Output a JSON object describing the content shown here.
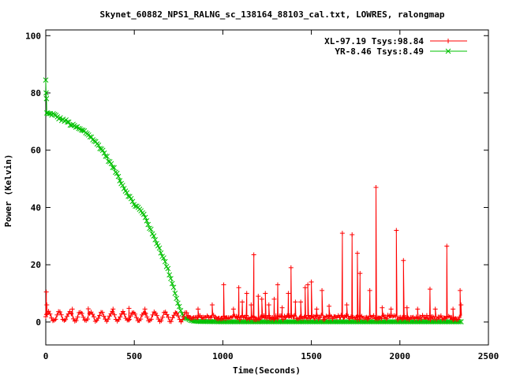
{
  "chart_data": {
    "type": "line",
    "title": "Skynet_60882_NPS1_RALNG_sc_138164_88103_cal.txt, LOWRES, ralongmap",
    "xlabel": "Time(Seconds)",
    "ylabel": "Power (Kelvin)",
    "xlim": [
      0,
      2500
    ],
    "ylim": [
      -8,
      102
    ],
    "xticks": [
      0,
      500,
      1000,
      1500,
      2000,
      2500
    ],
    "yticks": [
      0,
      20,
      40,
      60,
      80,
      100
    ],
    "grid": false,
    "legend_position": "top-right",
    "series": [
      {
        "name": "XL-97.19 Tsys:98.84",
        "color": "#ff0000",
        "marker": "plus",
        "baseline": {
          "x_start": 0,
          "x_end": 2350,
          "step": 4,
          "mean": 1.9,
          "ripple_amplitude": 1.6,
          "ripple_period": 60,
          "ripple_end": 800,
          "noise_after_ripple": 0.8
        },
        "spikes": [
          {
            "x": 3,
            "y": 10.5
          },
          {
            "x": 6,
            "y": 6
          },
          {
            "x": 150,
            "y": 4.5
          },
          {
            "x": 240,
            "y": 4.6
          },
          {
            "x": 380,
            "y": 4.5
          },
          {
            "x": 470,
            "y": 4.8
          },
          {
            "x": 560,
            "y": 4.5
          },
          {
            "x": 860,
            "y": 4.5
          },
          {
            "x": 940,
            "y": 6
          },
          {
            "x": 1005,
            "y": 13
          },
          {
            "x": 1060,
            "y": 4.5
          },
          {
            "x": 1090,
            "y": 12
          },
          {
            "x": 1110,
            "y": 7
          },
          {
            "x": 1135,
            "y": 10
          },
          {
            "x": 1160,
            "y": 6
          },
          {
            "x": 1175,
            "y": 23.5
          },
          {
            "x": 1200,
            "y": 9
          },
          {
            "x": 1220,
            "y": 8
          },
          {
            "x": 1240,
            "y": 10
          },
          {
            "x": 1260,
            "y": 6
          },
          {
            "x": 1290,
            "y": 8
          },
          {
            "x": 1310,
            "y": 13
          },
          {
            "x": 1335,
            "y": 5
          },
          {
            "x": 1370,
            "y": 10
          },
          {
            "x": 1385,
            "y": 19
          },
          {
            "x": 1410,
            "y": 7
          },
          {
            "x": 1440,
            "y": 7
          },
          {
            "x": 1465,
            "y": 12
          },
          {
            "x": 1480,
            "y": 13
          },
          {
            "x": 1500,
            "y": 14
          },
          {
            "x": 1530,
            "y": 4.5
          },
          {
            "x": 1560,
            "y": 11
          },
          {
            "x": 1600,
            "y": 5.5
          },
          {
            "x": 1675,
            "y": 31
          },
          {
            "x": 1700,
            "y": 6
          },
          {
            "x": 1730,
            "y": 30.5
          },
          {
            "x": 1760,
            "y": 24
          },
          {
            "x": 1775,
            "y": 17
          },
          {
            "x": 1830,
            "y": 11
          },
          {
            "x": 1865,
            "y": 47
          },
          {
            "x": 1900,
            "y": 5
          },
          {
            "x": 1950,
            "y": 4.5
          },
          {
            "x": 1980,
            "y": 32
          },
          {
            "x": 2020,
            "y": 21.5
          },
          {
            "x": 2040,
            "y": 5
          },
          {
            "x": 2100,
            "y": 4.5
          },
          {
            "x": 2170,
            "y": 11.5
          },
          {
            "x": 2200,
            "y": 4.5
          },
          {
            "x": 2265,
            "y": 26.5
          },
          {
            "x": 2300,
            "y": 4.5
          },
          {
            "x": 2340,
            "y": 11
          },
          {
            "x": 2345,
            "y": 6
          }
        ]
      },
      {
        "name": "YR-8.46 Tsys:8.49",
        "color": "#00c000",
        "marker": "cross",
        "spikes": [
          {
            "x": 0,
            "y": 84.5
          },
          {
            "x": 2,
            "y": 80
          },
          {
            "x": 4,
            "y": 78
          },
          {
            "x": 6,
            "y": 73
          }
        ],
        "knots": [
          [
            10,
            72.8
          ],
          [
            20,
            72.6
          ],
          [
            40,
            72.6
          ],
          [
            60,
            71.8
          ],
          [
            80,
            71
          ],
          [
            100,
            70.5
          ],
          [
            120,
            70
          ],
          [
            140,
            69
          ],
          [
            160,
            68.4
          ],
          [
            180,
            67.8
          ],
          [
            200,
            67
          ],
          [
            220,
            66.5
          ],
          [
            240,
            65.5
          ],
          [
            260,
            64.3
          ],
          [
            280,
            62.8
          ],
          [
            300,
            61.5
          ],
          [
            320,
            60
          ],
          [
            340,
            58
          ],
          [
            360,
            56
          ],
          [
            380,
            54
          ],
          [
            400,
            52
          ],
          [
            420,
            49.5
          ],
          [
            440,
            47
          ],
          [
            460,
            45
          ],
          [
            480,
            43
          ],
          [
            500,
            41
          ],
          [
            520,
            40
          ],
          [
            540,
            38.5
          ],
          [
            560,
            37
          ],
          [
            580,
            34
          ],
          [
            600,
            31
          ],
          [
            620,
            28.5
          ],
          [
            640,
            26
          ],
          [
            660,
            23
          ],
          [
            680,
            20
          ],
          [
            700,
            16.5
          ],
          [
            720,
            12.5
          ],
          [
            740,
            8
          ],
          [
            760,
            4
          ],
          [
            780,
            2
          ],
          [
            800,
            1
          ],
          [
            830,
            0.4
          ],
          [
            860,
            0.2
          ],
          [
            1000,
            0.1
          ],
          [
            2350,
            0.1
          ]
        ]
      }
    ]
  }
}
